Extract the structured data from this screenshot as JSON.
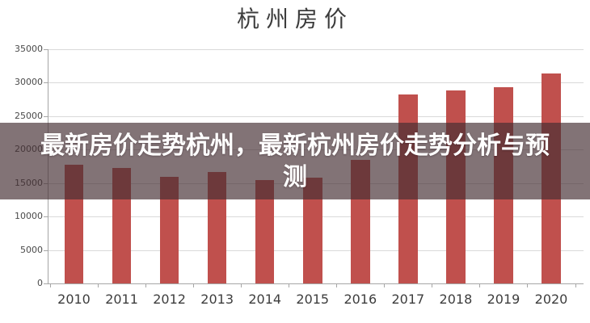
{
  "title": "杭州房价",
  "overlay": {
    "full_text": "最新房价走势杭州，最新杭州房价走势分析与预测",
    "lines": [
      "最新房价走势杭州，最新杭州房价走势分析与预",
      "测"
    ],
    "text_color": "#ffffff",
    "background_color": "rgba(69,46,51,0.67)"
  },
  "chart_data": {
    "type": "bar",
    "title": "杭州房价",
    "categories": [
      "2010",
      "2011",
      "2012",
      "2013",
      "2014",
      "2015",
      "2016",
      "2017",
      "2018",
      "2019",
      "2020"
    ],
    "values": [
      17700,
      17300,
      15900,
      16700,
      15500,
      15800,
      18500,
      28200,
      28900,
      29300,
      31400
    ],
    "xlabel": "",
    "ylabel": "",
    "ylim": [
      0,
      35000
    ],
    "ytick_interval": 5000,
    "yticks": [
      0,
      5000,
      10000,
      15000,
      20000,
      25000,
      30000,
      35000
    ],
    "grid": true,
    "legend": "none",
    "bar_color": "#c0504d",
    "gridline_color": "#d9d9d9",
    "axis_color": "#a6a6a6"
  }
}
